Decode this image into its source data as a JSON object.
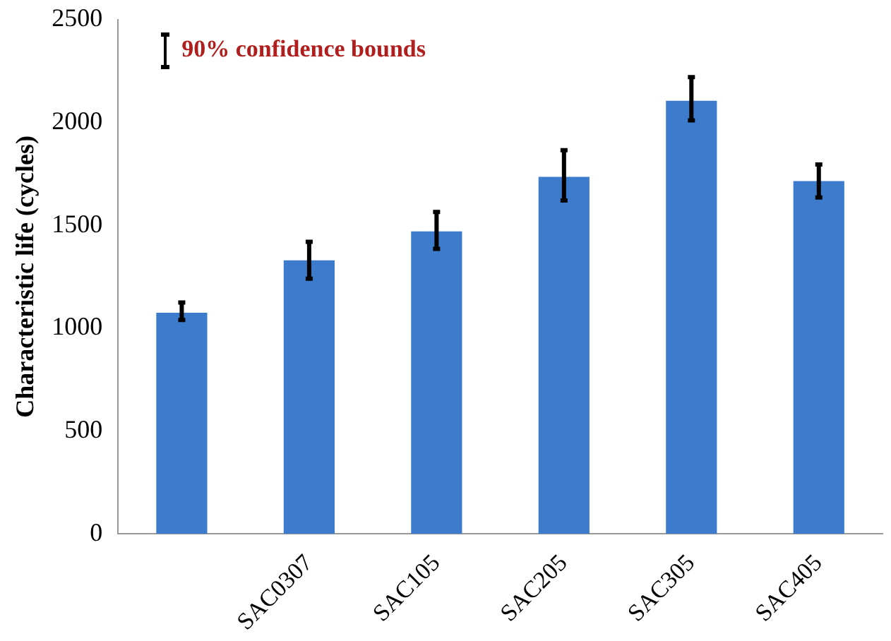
{
  "chart_data": {
    "type": "bar",
    "ylabel": "Characteristic life (cycles)",
    "categories": [
      null,
      "SAC0307",
      "SAC105",
      "SAC205",
      "SAC305",
      "SAC405"
    ],
    "values": [
      1075,
      1330,
      1470,
      1735,
      2105,
      1715
    ],
    "errors": [
      [
        1040,
        1125
      ],
      [
        1240,
        1420
      ],
      [
        1385,
        1565
      ],
      [
        1620,
        1865
      ],
      [
        2010,
        2220
      ],
      [
        1635,
        1795
      ]
    ],
    "color": "#3d7ccc",
    "ylim": [
      0,
      2500
    ],
    "yticks": [
      0,
      500,
      1000,
      1500,
      2000,
      2500
    ],
    "grid": false,
    "annotations": [
      "90% confidence bounds"
    ]
  }
}
